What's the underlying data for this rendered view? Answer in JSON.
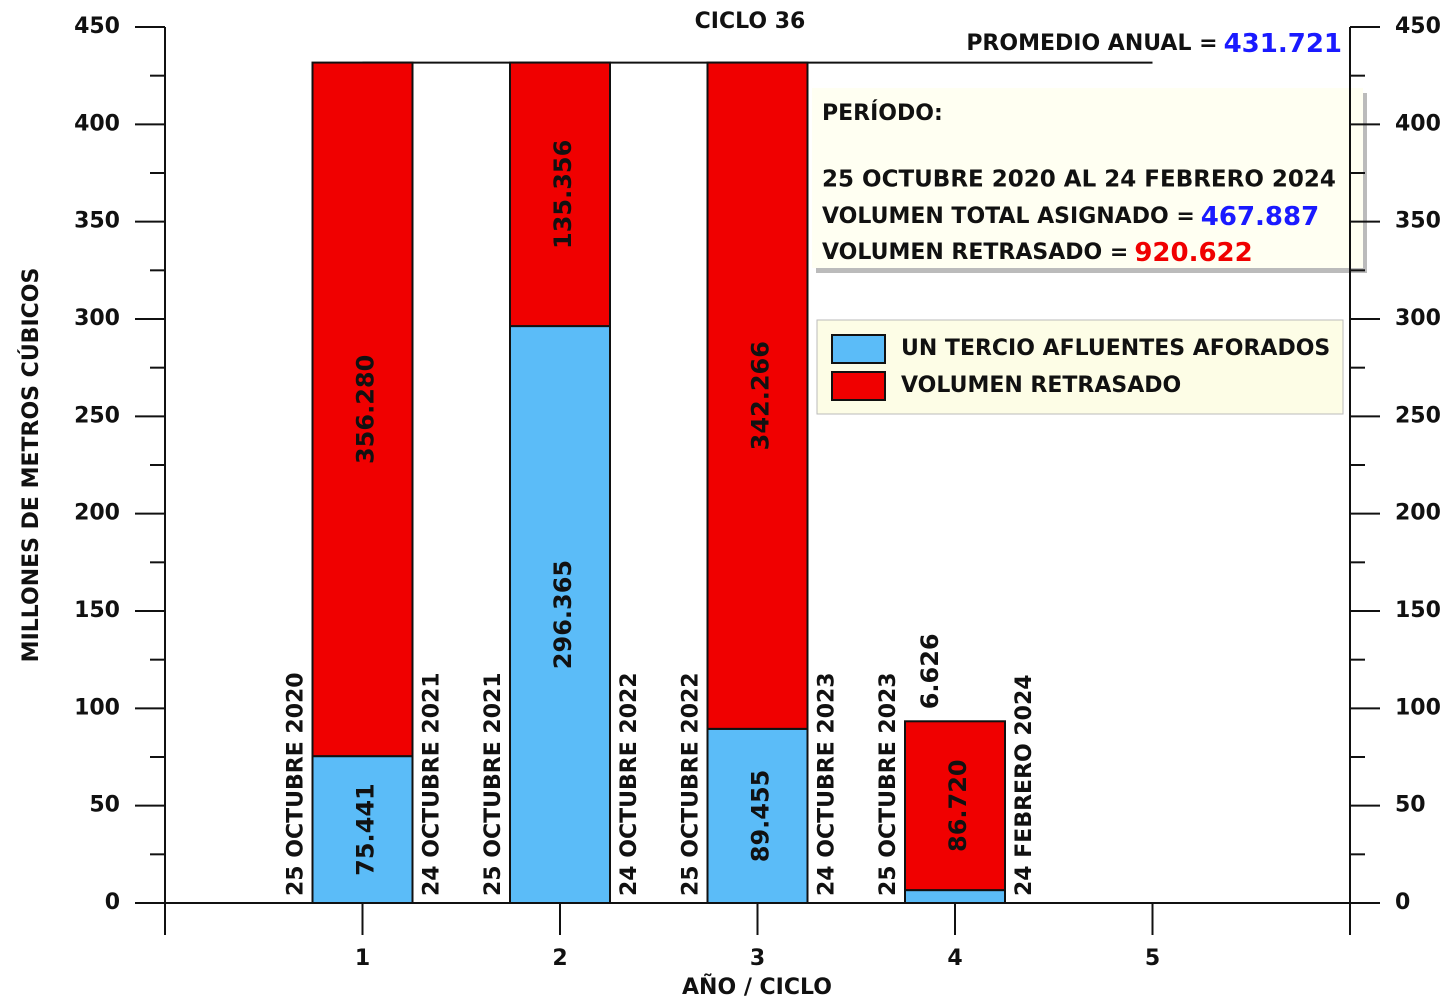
{
  "chart_data": {
    "type": "stacked-bar",
    "title": "CICLO 36",
    "xlabel": "AÑO / CICLO",
    "ylabel": "MILLONES DE METROS CÚBICOS",
    "x": [
      1,
      2,
      3,
      4
    ],
    "xlim": [
      0,
      6
    ],
    "xticks": [
      1,
      2,
      3,
      4,
      5
    ],
    "ylim": [
      0,
      450
    ],
    "yticks": [
      0,
      50,
      100,
      150,
      200,
      250,
      300,
      350,
      400,
      450
    ],
    "yminorticks": [
      25,
      75,
      125,
      175,
      225,
      275,
      325,
      375,
      425
    ],
    "y2lim": [
      0,
      450
    ],
    "y2ticks": [
      0,
      50,
      100,
      150,
      200,
      250,
      300,
      350,
      400,
      450
    ],
    "period_labels": [
      [
        "25 OCTUBRE 2020",
        "24 OCTUBRE 2021"
      ],
      [
        "25 OCTUBRE 2021",
        "24 OCTUBRE 2022"
      ],
      [
        "25 OCTUBRE 2022",
        "24 OCTUBRE 2023"
      ],
      [
        "25 OCTUBRE 2023",
        "24 FEBRERO 2024"
      ]
    ],
    "series": [
      {
        "name": "UN TERCIO AFLUENTES AFORADOS",
        "color": "#5bbcf8",
        "values": [
          75.441,
          296.365,
          89.455,
          6.626
        ],
        "value_labels": [
          "75.441",
          "296.365",
          "89.455",
          "6.626"
        ]
      },
      {
        "name": "VOLUMEN RETRASADO",
        "color": "#f00000",
        "values": [
          356.28,
          135.356,
          342.266,
          86.72
        ],
        "value_labels": [
          "356.280",
          "135.356",
          "342.266",
          "86.720"
        ]
      }
    ],
    "average": {
      "text": "PROMEDIO ANUAL =",
      "value": 431.721,
      "value_label": "431.721"
    },
    "info": {
      "heading": "PERÍODO:",
      "period": "25 OCTUBRE 2020 AL 24 FEBRERO 2024",
      "total_text": "VOLUMEN TOTAL ASIGNADO =",
      "total": 467.887,
      "delayed_text": "VOLUMEN RETRASADO =",
      "delayed": 920.622
    }
  }
}
